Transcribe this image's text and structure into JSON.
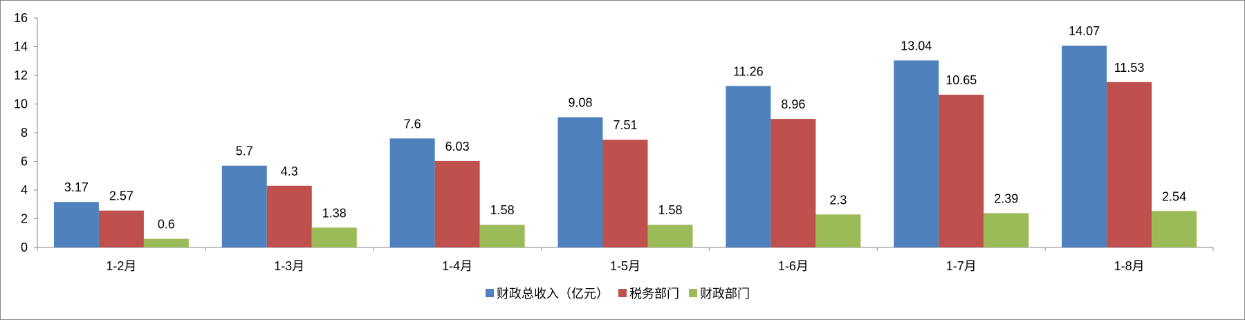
{
  "chart_data": {
    "type": "bar",
    "categories": [
      "1-2月",
      "1-3月",
      "1-4月",
      "1-5月",
      "1-6月",
      "1-7月",
      "1-8月"
    ],
    "series": [
      {
        "name": "财政总收入（亿元）",
        "color": "#4F81BD",
        "values": [
          3.17,
          5.7,
          7.6,
          9.08,
          11.26,
          13.04,
          14.07
        ]
      },
      {
        "name": "税务部门",
        "color": "#C0504D",
        "values": [
          2.57,
          4.3,
          6.03,
          7.51,
          8.96,
          10.65,
          11.53
        ]
      },
      {
        "name": "财政部门",
        "color": "#9BBB59",
        "values": [
          0.6,
          1.38,
          1.58,
          1.58,
          2.3,
          2.39,
          2.54
        ]
      }
    ],
    "ylim": [
      0,
      16
    ],
    "yticks": [
      0,
      2,
      4,
      6,
      8,
      10,
      12,
      14,
      16
    ],
    "grid": false,
    "legend_position": "bottom"
  }
}
